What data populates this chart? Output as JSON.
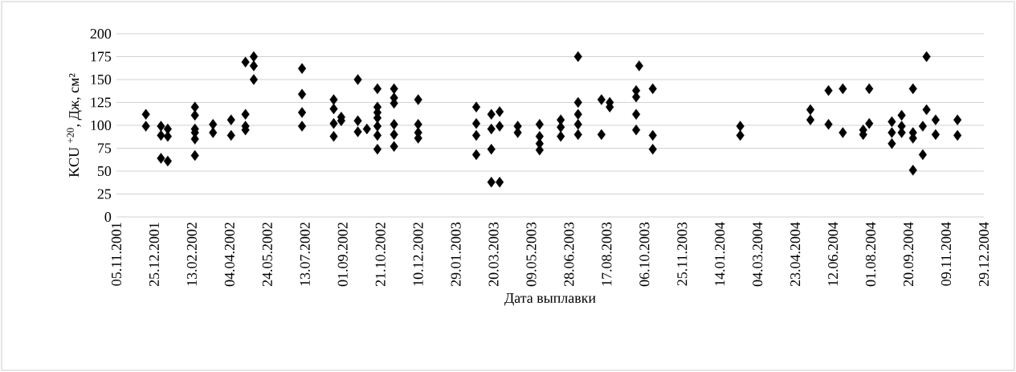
{
  "chart_data": {
    "type": "scatter",
    "xlabel": "Дата выплавки",
    "ylabel": "KCU $^{+20}$, Дж, см²",
    "series": [
      {
        "color": "#000000",
        "marker": "diamond",
        "x": [
          "2001-12-14",
          "2001-12-14",
          "2002-01-03",
          "2002-01-03",
          "2002-01-03",
          "2002-01-12",
          "2002-01-12",
          "2002-01-12",
          "2002-02-17",
          "2002-02-17",
          "2002-02-17",
          "2002-02-17",
          "2002-02-17",
          "2002-02-17",
          "2002-03-13",
          "2002-03-13",
          "2002-04-06",
          "2002-04-06",
          "2002-04-25",
          "2002-04-25",
          "2002-04-25",
          "2002-04-25",
          "2002-05-06",
          "2002-05-06",
          "2002-05-06",
          "2002-07-09",
          "2002-07-09",
          "2002-07-09",
          "2002-07-09",
          "2002-08-20",
          "2002-08-20",
          "2002-08-20",
          "2002-08-20",
          "2002-08-30",
          "2002-08-30",
          "2002-09-21",
          "2002-09-21",
          "2002-09-21",
          "2002-10-03",
          "2002-10-17",
          "2002-10-17",
          "2002-10-17",
          "2002-10-17",
          "2002-10-17",
          "2002-10-17",
          "2002-10-17",
          "2002-11-08",
          "2002-11-08",
          "2002-11-08",
          "2002-11-08",
          "2002-11-08",
          "2002-11-08",
          "2002-12-10",
          "2002-12-10",
          "2002-12-10",
          "2002-12-10",
          "2003-02-25",
          "2003-02-25",
          "2003-02-25",
          "2003-02-25",
          "2003-03-17",
          "2003-03-17",
          "2003-03-17",
          "2003-03-17",
          "2003-03-28",
          "2003-03-28",
          "2003-03-28",
          "2003-04-21",
          "2003-04-21",
          "2003-05-20",
          "2003-05-20",
          "2003-05-20",
          "2003-05-20",
          "2003-06-17",
          "2003-06-17",
          "2003-06-17",
          "2003-07-10",
          "2003-07-10",
          "2003-07-10",
          "2003-07-10",
          "2003-07-10",
          "2003-08-10",
          "2003-08-10",
          "2003-08-21",
          "2003-08-21",
          "2003-09-25",
          "2003-09-25",
          "2003-09-25",
          "2003-09-25",
          "2003-09-29",
          "2003-10-17",
          "2003-10-17",
          "2003-10-17",
          "2004-02-10",
          "2004-02-10",
          "2004-05-13",
          "2004-05-13",
          "2004-06-06",
          "2004-06-06",
          "2004-06-25",
          "2004-06-25",
          "2004-07-22",
          "2004-07-22",
          "2004-07-30",
          "2004-07-30",
          "2004-08-29",
          "2004-08-29",
          "2004-08-29",
          "2004-09-11",
          "2004-09-11",
          "2004-09-11",
          "2004-09-26",
          "2004-09-26",
          "2004-09-26",
          "2004-09-26",
          "2004-10-09",
          "2004-10-09",
          "2004-10-14",
          "2004-10-14",
          "2004-10-26",
          "2004-10-26",
          "2004-11-24",
          "2004-11-24"
        ],
        "values": [
          112,
          99,
          99,
          89,
          64,
          96,
          88,
          61,
          120,
          111,
          96,
          92,
          85,
          67,
          101,
          92,
          106,
          89,
          169,
          112,
          99,
          95,
          175,
          165,
          150,
          162,
          134,
          114,
          99,
          128,
          118,
          102,
          88,
          109,
          105,
          150,
          105,
          93,
          96,
          140,
          120,
          114,
          108,
          99,
          89,
          74,
          140,
          130,
          124,
          101,
          90,
          77,
          128,
          101,
          92,
          86,
          120,
          102,
          89,
          68,
          112,
          96,
          74,
          38,
          115,
          99,
          38,
          99,
          92,
          101,
          88,
          80,
          73,
          106,
          98,
          88,
          175,
          125,
          112,
          101,
          90,
          128,
          90,
          125,
          120,
          138,
          131,
          112,
          95,
          165,
          140,
          89,
          74,
          99,
          89,
          117,
          106,
          138,
          101,
          140,
          92,
          95,
          90,
          140,
          102,
          104,
          92,
          80,
          111,
          99,
          92,
          140,
          92,
          86,
          51,
          99,
          68,
          175,
          117,
          106,
          90,
          106,
          89
        ]
      }
    ],
    "xlim": [
      "2001-11-05",
      "2004-12-29"
    ],
    "xticks": [
      {
        "value": "2001-11-05",
        "label": "05.11.2001"
      },
      {
        "value": "2001-12-25",
        "label": "25.12.2001"
      },
      {
        "value": "2002-02-13",
        "label": "13.02.2002"
      },
      {
        "value": "2002-04-04",
        "label": "04.04.2002"
      },
      {
        "value": "2002-05-24",
        "label": "24.05.2002"
      },
      {
        "value": "2002-07-13",
        "label": "13.07.2002"
      },
      {
        "value": "2002-09-01",
        "label": "01.09.2002"
      },
      {
        "value": "2002-10-21",
        "label": "21.10.2002"
      },
      {
        "value": "2002-12-10",
        "label": "10.12.2002"
      },
      {
        "value": "2003-01-29",
        "label": "29.01.2003"
      },
      {
        "value": "2003-03-20",
        "label": "20.03.2003"
      },
      {
        "value": "2003-05-09",
        "label": "09.05.2003"
      },
      {
        "value": "2003-06-28",
        "label": "28.06.2003"
      },
      {
        "value": "2003-08-17",
        "label": "17.08.2003"
      },
      {
        "value": "2003-10-06",
        "label": "06.10.2003"
      },
      {
        "value": "2003-11-25",
        "label": "25.11.2003"
      },
      {
        "value": "2004-01-14",
        "label": "14.01.2004"
      },
      {
        "value": "2004-03-04",
        "label": "04.03.2004"
      },
      {
        "value": "2004-04-23",
        "label": "23.04.2004"
      },
      {
        "value": "2004-06-12",
        "label": "12.06.2004"
      },
      {
        "value": "2004-08-01",
        "label": "01.08.2004"
      },
      {
        "value": "2004-09-20",
        "label": "20.09.2004"
      },
      {
        "value": "2004-11-09",
        "label": "09.11.2004"
      },
      {
        "value": "2004-12-29",
        "label": "29.12.2004"
      }
    ],
    "ylim": [
      0,
      200
    ],
    "yticks": [
      0,
      25,
      50,
      75,
      100,
      125,
      150,
      175,
      200
    ],
    "grid": "y"
  }
}
